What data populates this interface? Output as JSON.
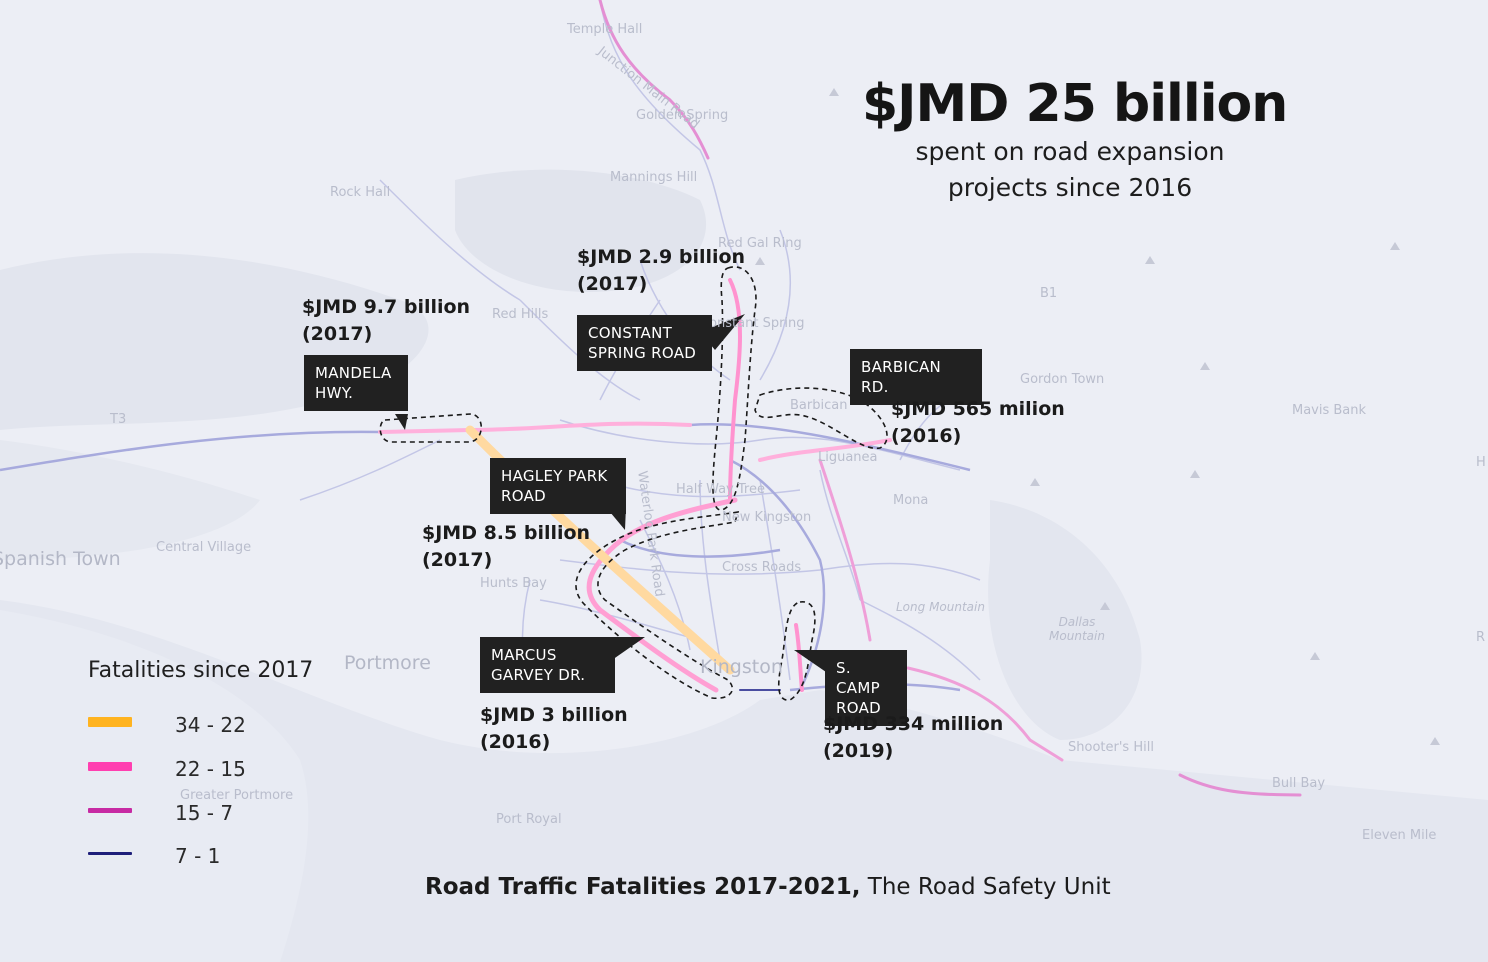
{
  "headline": {
    "amount": "$JMD 25 billion",
    "subtitle_line1": "spent on road expansion",
    "subtitle_line2": "projects since 2016"
  },
  "projects": [
    {
      "road": "MANDELA HWY.",
      "cost": "$JMD 9.7 billion",
      "year": "(2017)"
    },
    {
      "road": "CONSTANT SPRING ROAD",
      "cost": "$JMD 2.9 billion",
      "year": "(2017)"
    },
    {
      "road": "BARBICAN RD.",
      "cost": "$JMD 565 milion",
      "year": "(2016)"
    },
    {
      "road": "HAGLEY PARK ROAD",
      "cost": "$JMD 8.5 billion",
      "year": "(2017)"
    },
    {
      "road": "MARCUS GARVEY DR.",
      "cost": "$JMD 3 billion",
      "year": "(2016)"
    },
    {
      "road": "S. CAMP ROAD",
      "cost": "$JMD 334 million",
      "year": "(2019)"
    }
  ],
  "labels": {
    "mandela_1": "MANDELA",
    "mandela_2": "HWY.",
    "constant_1": "CONSTANT",
    "constant_2": "SPRING ROAD",
    "barbican_1": "BARBICAN RD.",
    "hagley_1": "HAGLEY PARK",
    "hagley_2": "ROAD",
    "marcus_1": "MARCUS",
    "marcus_2": "GARVEY DR.",
    "scamp_1": "S. CAMP",
    "scamp_2": "ROAD"
  },
  "legend": {
    "title": "Fatalities since 2017",
    "items": [
      {
        "label": "34 - 22",
        "color": "#ffb31f"
      },
      {
        "label": "22 - 15",
        "color": "#ff3fb0"
      },
      {
        "label": "15 - 7",
        "color": "#c72aa3"
      },
      {
        "label": "7 - 1",
        "color": "#1e1f7a"
      }
    ]
  },
  "credit": {
    "bold": "Road Traffic Fatalities 2017-2021,",
    "normal": " The Road Safety Unit"
  },
  "places": {
    "temple_hall": "Temple Hall",
    "junction_main_road": "Junction Main Road",
    "golden_spring": "Golden Spring",
    "mannings_hill": "Mannings Hill",
    "rock_hall": "Rock Hall",
    "red_gal_ring": "Red Gal Ring",
    "red_hills": "Red Hills",
    "constant_spring": "Constant Spring",
    "gordon_town": "Gordon Town",
    "mavis_bank": "Mavis Bank",
    "b1": "B1",
    "t3": "T3",
    "barbican": "Barbican",
    "liguanea": "Liguanea",
    "half_way_tree": "Half Way Tree",
    "mona": "Mona",
    "new_kingston": "New Kingston",
    "cross_roads": "Cross Roads",
    "spanish_town": "Spanish Town",
    "central_village": "Central Village",
    "portmore": "Portmore",
    "kingston": "Kingston",
    "long_mountain": "Long Mountain",
    "dallas_mountain": "Dallas Mountain",
    "shooters_hill": "Shooter's Hill",
    "bull_bay": "Bull Bay",
    "eleven_mile": "Eleven Mile",
    "greater_portmore": "Greater Portmore",
    "port_royal": "Port Royal",
    "hunts_bay": "Hunts Bay",
    "waterloo_road": "Waterloo Park Road",
    "h": "H",
    "r": "R"
  }
}
